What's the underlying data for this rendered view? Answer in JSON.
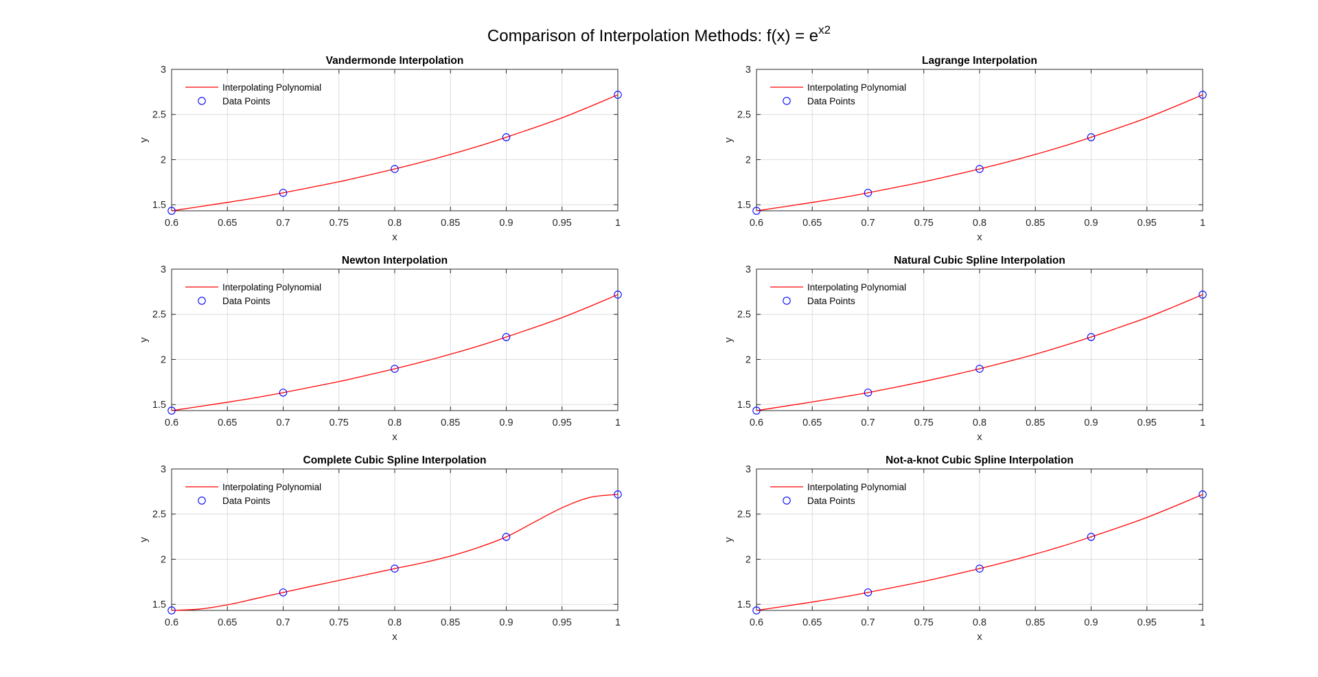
{
  "figure": {
    "title_prefix": "Comparison of Interpolation Methods: f(x) = e",
    "title_sup": "x2"
  },
  "chart_data": [
    {
      "type": "line",
      "title": "Vandermonde Interpolation",
      "xlabel": "x",
      "ylabel": "y",
      "xlim": [
        0.6,
        1.0
      ],
      "ylim": [
        1.4333,
        3
      ],
      "xticks": [
        "0.6",
        "0.65",
        "0.7",
        "0.75",
        "0.8",
        "0.85",
        "0.9",
        "0.95",
        "1"
      ],
      "yticks": [
        "1.5",
        "2",
        "2.5",
        "3"
      ],
      "grid": true,
      "legend_placement": "top-left",
      "series": [
        {
          "name": "Interpolating Polynomial",
          "kind": "curve",
          "color": "#ff0000",
          "x": [
            0.6,
            0.625,
            0.65,
            0.675,
            0.7,
            0.725,
            0.75,
            0.775,
            0.8,
            0.825,
            0.85,
            0.875,
            0.9,
            0.925,
            0.95,
            0.975,
            1.0
          ],
          "y": [
            1.4333,
            1.4786,
            1.5259,
            1.5756,
            1.6323,
            1.6929,
            1.7546,
            1.8238,
            1.8965,
            1.9739,
            2.0578,
            2.1479,
            2.2479,
            2.3526,
            2.463,
            2.5877,
            2.7183
          ]
        },
        {
          "name": "Data Points",
          "kind": "markers",
          "color": "#0000ff",
          "x": [
            0.6,
            0.7,
            0.8,
            0.9,
            1.0
          ],
          "y": [
            1.4333,
            1.6323,
            1.8965,
            2.2479,
            2.7183
          ]
        }
      ]
    },
    {
      "type": "line",
      "title": "Lagrange Interpolation",
      "xlabel": "x",
      "ylabel": "y",
      "xlim": [
        0.6,
        1.0
      ],
      "ylim": [
        1.4333,
        3
      ],
      "xticks": [
        "0.6",
        "0.65",
        "0.7",
        "0.75",
        "0.8",
        "0.85",
        "0.9",
        "0.95",
        "1"
      ],
      "yticks": [
        "1.5",
        "2",
        "2.5",
        "3"
      ],
      "grid": true,
      "legend_placement": "top-left",
      "series": [
        {
          "name": "Interpolating Polynomial",
          "kind": "curve",
          "color": "#ff0000",
          "x": [
            0.6,
            0.625,
            0.65,
            0.675,
            0.7,
            0.725,
            0.75,
            0.775,
            0.8,
            0.825,
            0.85,
            0.875,
            0.9,
            0.925,
            0.95,
            0.975,
            1.0
          ],
          "y": [
            1.4333,
            1.4786,
            1.5259,
            1.5756,
            1.6323,
            1.6929,
            1.7546,
            1.8238,
            1.8965,
            1.9739,
            2.0578,
            2.1479,
            2.2479,
            2.3526,
            2.463,
            2.5877,
            2.7183
          ]
        },
        {
          "name": "Data Points",
          "kind": "markers",
          "color": "#0000ff",
          "x": [
            0.6,
            0.7,
            0.8,
            0.9,
            1.0
          ],
          "y": [
            1.4333,
            1.6323,
            1.8965,
            2.2479,
            2.7183
          ]
        }
      ]
    },
    {
      "type": "line",
      "title": "Newton Interpolation",
      "xlabel": "x",
      "ylabel": "y",
      "xlim": [
        0.6,
        1.0
      ],
      "ylim": [
        1.4333,
        3
      ],
      "xticks": [
        "0.6",
        "0.65",
        "0.7",
        "0.75",
        "0.8",
        "0.85",
        "0.9",
        "0.95",
        "1"
      ],
      "yticks": [
        "1.5",
        "2",
        "2.5",
        "3"
      ],
      "grid": true,
      "legend_placement": "top-left",
      "series": [
        {
          "name": "Interpolating Polynomial",
          "kind": "curve",
          "color": "#ff0000",
          "x": [
            0.6,
            0.625,
            0.65,
            0.675,
            0.7,
            0.725,
            0.75,
            0.775,
            0.8,
            0.825,
            0.85,
            0.875,
            0.9,
            0.925,
            0.95,
            0.975,
            1.0
          ],
          "y": [
            1.4333,
            1.4786,
            1.5259,
            1.5756,
            1.6323,
            1.6929,
            1.7546,
            1.8238,
            1.8965,
            1.9739,
            2.0578,
            2.1479,
            2.2479,
            2.3526,
            2.463,
            2.5877,
            2.7183
          ]
        },
        {
          "name": "Data Points",
          "kind": "markers",
          "color": "#0000ff",
          "x": [
            0.6,
            0.7,
            0.8,
            0.9,
            1.0
          ],
          "y": [
            1.4333,
            1.6323,
            1.8965,
            2.2479,
            2.7183
          ]
        }
      ]
    },
    {
      "type": "line",
      "title": "Natural Cubic Spline Interpolation",
      "xlabel": "x",
      "ylabel": "y",
      "xlim": [
        0.6,
        1.0
      ],
      "ylim": [
        1.4333,
        3
      ],
      "xticks": [
        "0.6",
        "0.65",
        "0.7",
        "0.75",
        "0.8",
        "0.85",
        "0.9",
        "0.95",
        "1"
      ],
      "yticks": [
        "1.5",
        "2",
        "2.5",
        "3"
      ],
      "grid": true,
      "legend_placement": "top-left",
      "series": [
        {
          "name": "Interpolating Polynomial",
          "kind": "curve",
          "color": "#ff0000",
          "x": [
            0.6,
            0.625,
            0.65,
            0.675,
            0.7,
            0.725,
            0.75,
            0.775,
            0.8,
            0.825,
            0.85,
            0.875,
            0.9,
            0.925,
            0.95,
            0.975,
            1.0
          ],
          "y": [
            1.4333,
            1.481,
            1.5295,
            1.58,
            1.6323,
            1.693,
            1.756,
            1.824,
            1.8965,
            1.975,
            2.058,
            2.15,
            2.2479,
            2.354,
            2.463,
            2.588,
            2.7183
          ]
        },
        {
          "name": "Data Points",
          "kind": "markers",
          "color": "#0000ff",
          "x": [
            0.6,
            0.7,
            0.8,
            0.9,
            1.0
          ],
          "y": [
            1.4333,
            1.6323,
            1.8965,
            2.2479,
            2.7183
          ]
        }
      ]
    },
    {
      "type": "line",
      "title": "Complete Cubic Spline Interpolation",
      "xlabel": "x",
      "ylabel": "y",
      "xlim": [
        0.6,
        1.0
      ],
      "ylim": [
        1.4333,
        3
      ],
      "xticks": [
        "0.6",
        "0.65",
        "0.7",
        "0.75",
        "0.8",
        "0.85",
        "0.9",
        "0.95",
        "1"
      ],
      "yticks": [
        "1.5",
        "2",
        "2.5",
        "3"
      ],
      "grid": true,
      "legend_placement": "top-left",
      "series": [
        {
          "name": "Interpolating Polynomial",
          "kind": "curve",
          "color": "#ff0000",
          "x": [
            0.6,
            0.625,
            0.65,
            0.675,
            0.7,
            0.725,
            0.75,
            0.775,
            0.8,
            0.825,
            0.85,
            0.875,
            0.9,
            0.925,
            0.95,
            0.975,
            1.0
          ],
          "y": [
            1.4333,
            1.448,
            1.495,
            1.563,
            1.6323,
            1.7,
            1.765,
            1.83,
            1.8965,
            1.96,
            2.035,
            2.13,
            2.2479,
            2.41,
            2.57,
            2.685,
            2.7183
          ]
        },
        {
          "name": "Data Points",
          "kind": "markers",
          "color": "#0000ff",
          "x": [
            0.6,
            0.7,
            0.8,
            0.9,
            1.0
          ],
          "y": [
            1.4333,
            1.6323,
            1.8965,
            2.2479,
            2.7183
          ]
        }
      ]
    },
    {
      "type": "line",
      "title": "Not-a-knot Cubic Spline Interpolation",
      "xlabel": "x",
      "ylabel": "y",
      "xlim": [
        0.6,
        1.0
      ],
      "ylim": [
        1.4333,
        3
      ],
      "xticks": [
        "0.6",
        "0.65",
        "0.7",
        "0.75",
        "0.8",
        "0.85",
        "0.9",
        "0.95",
        "1"
      ],
      "yticks": [
        "1.5",
        "2",
        "2.5",
        "3"
      ],
      "grid": true,
      "legend_placement": "top-left",
      "series": [
        {
          "name": "Interpolating Polynomial",
          "kind": "curve",
          "color": "#ff0000",
          "x": [
            0.6,
            0.625,
            0.65,
            0.675,
            0.7,
            0.725,
            0.75,
            0.775,
            0.8,
            0.825,
            0.85,
            0.875,
            0.9,
            0.925,
            0.95,
            0.975,
            1.0
          ],
          "y": [
            1.4333,
            1.4786,
            1.5259,
            1.5756,
            1.6323,
            1.6929,
            1.7546,
            1.8238,
            1.8965,
            1.9739,
            2.0578,
            2.1479,
            2.2479,
            2.3526,
            2.463,
            2.5877,
            2.7183
          ]
        },
        {
          "name": "Data Points",
          "kind": "markers",
          "color": "#0000ff",
          "x": [
            0.6,
            0.7,
            0.8,
            0.9,
            1.0
          ],
          "y": [
            1.4333,
            1.6323,
            1.8965,
            2.2479,
            2.7183
          ]
        }
      ]
    }
  ]
}
